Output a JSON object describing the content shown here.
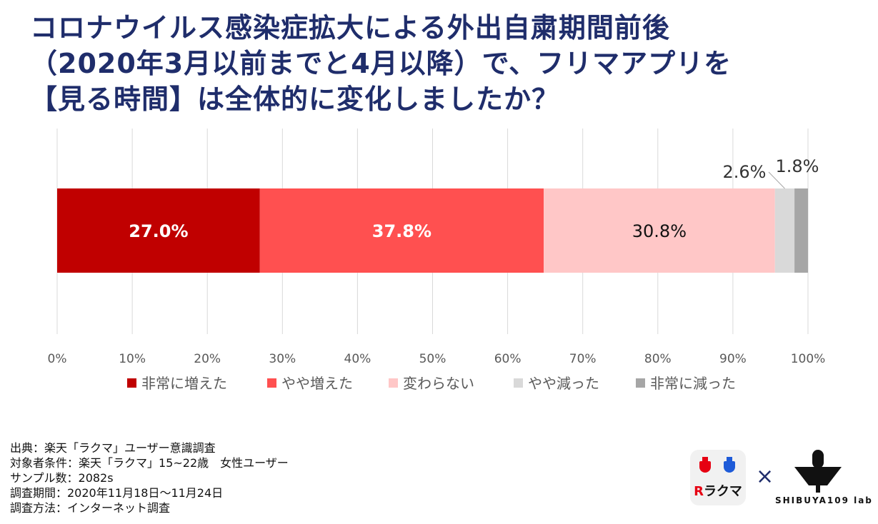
{
  "title": {
    "line1": "コロナウイルス感染症拡大による外出自粛期間前後",
    "line2": "（2020年3月以前までと4月以降）で、フリマアプリを",
    "line3": "【見る時間】は全体的に変化しましたか？"
  },
  "chart_data": {
    "type": "bar",
    "orientation": "horizontal",
    "stacked": true,
    "title": "",
    "xlabel": "",
    "ylabel": "",
    "xlim": [
      0,
      100
    ],
    "x_ticks": [
      "0%",
      "10%",
      "20%",
      "30%",
      "40%",
      "50%",
      "60%",
      "70%",
      "80%",
      "90%",
      "100%"
    ],
    "grid": true,
    "legend_position": "bottom",
    "series": [
      {
        "name": "非常に増えた",
        "value": 27.0,
        "label": "27.0%",
        "color": "#c00000",
        "label_color": "#ffffff"
      },
      {
        "name": "やや増えた",
        "value": 37.8,
        "label": "37.8%",
        "color": "#ff5050",
        "label_color": "#ffffff"
      },
      {
        "name": "変わらない",
        "value": 30.8,
        "label": "30.8%",
        "color": "#ffc7c7",
        "label_color": "#111111"
      },
      {
        "name": "やや減った",
        "value": 2.6,
        "label": "2.6%",
        "color": "#d9d9d9",
        "label_color": "#333333"
      },
      {
        "name": "非常に減った",
        "value": 1.8,
        "label": "1.8%",
        "color": "#a6a6a6",
        "label_color": "#333333"
      }
    ]
  },
  "source": {
    "line1": "出典：楽天「ラクマ」ユーザー意識調査",
    "line2": "対象者条件：楽天「ラクマ」15~22歳　女性ユーザー",
    "line3": "サンプル数：2082s",
    "line4": "調査期間：2020年11月18日～11月24日",
    "line5": "調査方法：インターネット調査"
  },
  "logos": {
    "rakuma_r": "R",
    "rakuma_name": "ラクマ",
    "times": "×",
    "lab": "SHIBUYA109 lab"
  }
}
